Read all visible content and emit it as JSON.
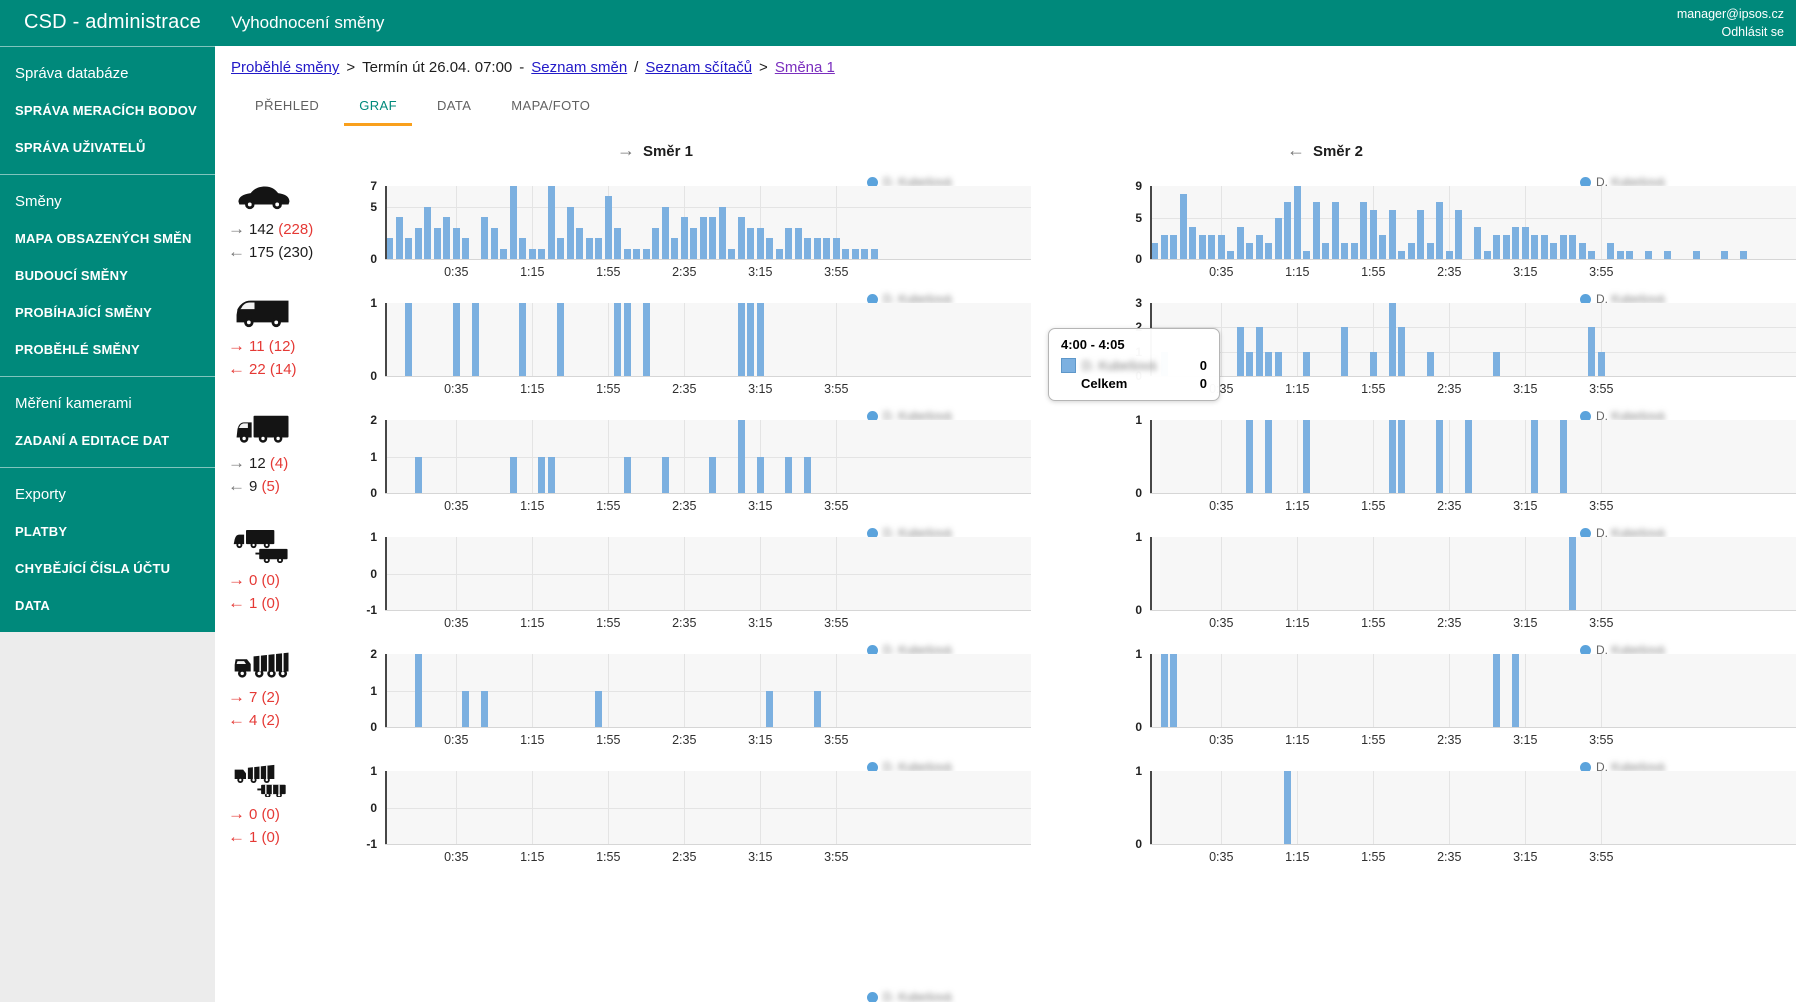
{
  "colors": {
    "teal": "#00897B",
    "tab_orange": "#F9A01C",
    "red": "#E53935",
    "bar_blue": "#7CB0E0",
    "link_blue": "#2219C8",
    "link_visited": "#7B2FBE"
  },
  "app": {
    "brand": "CSD - administrace",
    "page_title": "Vyhodnocení směny",
    "user_email": "manager@ipsos.cz",
    "logout_label": "Odhlásit se"
  },
  "sidebar": {
    "sections": [
      {
        "header": "Správa databáze",
        "items": [
          "SPRÁVA MERACÍCH BODOV",
          "SPRÁVA UŽIVATELŮ"
        ]
      },
      {
        "header": "Směny",
        "items": [
          "MAPA OBSAZENÝCH SMĚN",
          "BUDOUCÍ SMĚNY",
          "PROBÍHAJÍCÍ SMĚNY",
          "PROBĚHLÉ SMĚNY"
        ]
      },
      {
        "header": "Měření kamerami",
        "items": [
          "ZADANÍ A EDITACE DAT"
        ]
      },
      {
        "header": "Exporty",
        "items": [
          "PLATBY",
          "CHYBĚJÍCÍ ČÍSLA ÚČTU",
          "DATA"
        ]
      }
    ]
  },
  "breadcrumb": [
    {
      "label": "Proběhlé směny",
      "type": "link"
    },
    {
      "label": ">",
      "type": "sep"
    },
    {
      "label": "Termín út 26.04. 07:00",
      "type": "text"
    },
    {
      "label": "-",
      "type": "sep"
    },
    {
      "label": "Seznam směn",
      "type": "link"
    },
    {
      "label": "/",
      "type": "sep"
    },
    {
      "label": "Seznam sčítačů",
      "type": "link"
    },
    {
      "label": ">",
      "type": "sep"
    },
    {
      "label": "Směna 1",
      "type": "link-visited"
    }
  ],
  "tabs": [
    {
      "label": "PŘEHLED",
      "active": false
    },
    {
      "label": "GRAF",
      "active": true
    },
    {
      "label": "DATA",
      "active": false
    },
    {
      "label": "MAPA/FOTO",
      "active": false
    }
  ],
  "columns": {
    "dir1_arrow": "→",
    "dir1": "Směr 1",
    "dir2_arrow": "←",
    "dir2": "Směr 2"
  },
  "legend": {
    "series_name": "D. Kubešová",
    "blurred": true
  },
  "tooltip": {
    "title": "4:00 - 4:05",
    "series_name": "D. Kubešová",
    "series_value": "0",
    "total_label": "Celkem",
    "total_value": "0"
  },
  "rows": [
    {
      "vehicle": "car",
      "dir1": {
        "arrow": "→",
        "arrow_red": false,
        "num": "142",
        "num_red": false,
        "paren": "(228)",
        "paren_red": true
      },
      "dir2": {
        "arrow": "←",
        "arrow_red": false,
        "num": "175",
        "num_red": false,
        "paren": "(230)",
        "paren_red": false
      }
    },
    {
      "vehicle": "van",
      "dir1": {
        "arrow": "→",
        "arrow_red": true,
        "num": "11",
        "num_red": true,
        "paren": "(12)",
        "paren_red": true
      },
      "dir2": {
        "arrow": "←",
        "arrow_red": true,
        "num": "22",
        "num_red": true,
        "paren": "(14)",
        "paren_red": true
      }
    },
    {
      "vehicle": "box-truck",
      "dir1": {
        "arrow": "→",
        "arrow_red": false,
        "num": "12",
        "num_red": false,
        "paren": "(4)",
        "paren_red": true
      },
      "dir2": {
        "arrow": "←",
        "arrow_red": false,
        "num": "9",
        "num_red": false,
        "paren": "(5)",
        "paren_red": true
      }
    },
    {
      "vehicle": "truck-trailer",
      "dir1": {
        "arrow": "→",
        "arrow_red": true,
        "num": "0",
        "num_red": true,
        "paren": "(0)",
        "paren_red": true
      },
      "dir2": {
        "arrow": "←",
        "arrow_red": true,
        "num": "1",
        "num_red": true,
        "paren": "(0)",
        "paren_red": true
      }
    },
    {
      "vehicle": "dump-truck",
      "dir1": {
        "arrow": "→",
        "arrow_red": true,
        "num": "7",
        "num_red": true,
        "paren": "(2)",
        "paren_red": true
      },
      "dir2": {
        "arrow": "←",
        "arrow_red": true,
        "num": "4",
        "num_red": true,
        "paren": "(2)",
        "paren_red": true
      }
    },
    {
      "vehicle": "dump-trailer",
      "dir1": {
        "arrow": "→",
        "arrow_red": true,
        "num": "0",
        "num_red": true,
        "paren": "(0)",
        "paren_red": true
      },
      "dir2": {
        "arrow": "←",
        "arrow_red": true,
        "num": "1",
        "num_red": true,
        "paren": "(0)",
        "paren_red": true
      }
    }
  ],
  "x_axis": {
    "bin_minutes": 5,
    "n_bins": 68,
    "tick_bins": [
      7,
      15,
      23,
      31,
      39,
      47
    ],
    "tick_labels": [
      "0:35",
      "1:15",
      "1:55",
      "2:35",
      "3:15",
      "3:55"
    ]
  },
  "chart_data": [
    {
      "id": "car-smer1",
      "type": "bar",
      "direction": "Směr 1",
      "vehicle": "car",
      "ymin": 0,
      "ymax": 7,
      "yticks": [
        7,
        5,
        0
      ],
      "values": [
        2,
        4,
        2,
        3,
        5,
        3,
        4,
        3,
        2,
        0,
        4,
        3,
        1,
        7,
        2,
        1,
        1,
        7,
        2,
        5,
        3,
        2,
        2,
        6,
        3,
        1,
        1,
        1,
        3,
        5,
        2,
        4,
        3,
        4,
        4,
        5,
        1,
        4,
        3,
        3,
        2,
        1,
        3,
        3,
        2,
        2,
        2,
        2,
        1,
        1,
        1,
        1,
        0,
        0,
        0,
        0,
        0,
        0,
        0,
        0,
        0,
        0,
        0,
        0,
        0,
        0,
        0,
        0
      ]
    },
    {
      "id": "car-smer2",
      "type": "bar",
      "direction": "Směr 2",
      "vehicle": "car",
      "ymin": 0,
      "ymax": 9,
      "yticks": [
        9,
        5,
        0
      ],
      "values": [
        2,
        3,
        3,
        8,
        4,
        3,
        3,
        3,
        1,
        4,
        2,
        3,
        2,
        5,
        7,
        9,
        1,
        7,
        2,
        7,
        2,
        2,
        7,
        6,
        3,
        6,
        1,
        2,
        6,
        2,
        7,
        1,
        6,
        0,
        4,
        1,
        3,
        3,
        4,
        4,
        3,
        3,
        2,
        3,
        3,
        2,
        1,
        0,
        2,
        1,
        1,
        0,
        1,
        0,
        1,
        0,
        0,
        1,
        0,
        0,
        1,
        0,
        1,
        0,
        0,
        0,
        0,
        0
      ]
    },
    {
      "id": "van-smer1",
      "type": "bar",
      "direction": "Směr 1",
      "vehicle": "van",
      "ymin": 0,
      "ymax": 1,
      "yticks": [
        1,
        0
      ],
      "values": [
        0,
        0,
        1,
        0,
        0,
        0,
        0,
        1,
        0,
        1,
        0,
        0,
        0,
        0,
        1,
        0,
        0,
        0,
        1,
        0,
        0,
        0,
        0,
        0,
        1,
        1,
        0,
        1,
        0,
        0,
        0,
        0,
        0,
        0,
        0,
        0,
        0,
        1,
        1,
        1,
        0,
        0,
        0,
        0,
        0,
        0,
        0,
        0,
        0,
        0,
        0,
        0,
        0,
        0,
        0,
        0,
        0,
        0,
        0,
        0,
        0,
        0,
        0,
        0,
        0,
        0,
        0,
        0
      ]
    },
    {
      "id": "van-smer2",
      "type": "bar",
      "direction": "Směr 2",
      "vehicle": "van",
      "ymin": 0,
      "ymax": 3,
      "yticks": [
        3,
        2,
        1,
        0
      ],
      "values": [
        0,
        1,
        0,
        0,
        0,
        0,
        0,
        0,
        0,
        2,
        1,
        2,
        1,
        1,
        0,
        0,
        1,
        0,
        0,
        0,
        2,
        0,
        0,
        1,
        0,
        3,
        2,
        0,
        0,
        1,
        0,
        0,
        0,
        0,
        0,
        0,
        1,
        0,
        0,
        0,
        0,
        0,
        0,
        0,
        0,
        0,
        2,
        1,
        0,
        0,
        0,
        0,
        0,
        0,
        0,
        0,
        0,
        0,
        0,
        0,
        0,
        0,
        0,
        0,
        0,
        0,
        0,
        0
      ]
    },
    {
      "id": "box-truck-smer1",
      "type": "bar",
      "direction": "Směr 1",
      "vehicle": "box-truck",
      "ymin": 0,
      "ymax": 2,
      "yticks": [
        2,
        1,
        0
      ],
      "values": [
        0,
        0,
        0,
        1,
        0,
        0,
        0,
        0,
        0,
        0,
        0,
        0,
        0,
        1,
        0,
        0,
        1,
        1,
        0,
        0,
        0,
        0,
        0,
        0,
        0,
        1,
        0,
        0,
        0,
        1,
        0,
        0,
        0,
        0,
        1,
        0,
        0,
        2,
        0,
        1,
        0,
        0,
        1,
        0,
        1,
        0,
        0,
        0,
        0,
        0,
        0,
        0,
        0,
        0,
        0,
        0,
        0,
        0,
        0,
        0,
        0,
        0,
        0,
        0,
        0,
        0,
        0,
        0
      ]
    },
    {
      "id": "box-truck-smer2",
      "type": "bar",
      "direction": "Směr 2",
      "vehicle": "box-truck",
      "ymin": 0,
      "ymax": 1,
      "yticks": [
        1,
        0
      ],
      "values": [
        0,
        0,
        0,
        0,
        0,
        0,
        0,
        0,
        0,
        0,
        1,
        0,
        1,
        0,
        0,
        0,
        1,
        0,
        0,
        0,
        0,
        0,
        0,
        0,
        0,
        1,
        1,
        0,
        0,
        0,
        1,
        0,
        0,
        1,
        0,
        0,
        0,
        0,
        0,
        0,
        1,
        0,
        0,
        1,
        0,
        0,
        0,
        0,
        0,
        0,
        0,
        0,
        0,
        0,
        0,
        0,
        0,
        0,
        0,
        0,
        0,
        0,
        0,
        0,
        0,
        0,
        0,
        0
      ]
    },
    {
      "id": "truck-trailer-smer1",
      "type": "bar",
      "direction": "Směr 1",
      "vehicle": "truck-trailer",
      "ymin": -1,
      "ymax": 1,
      "yticks": [
        1,
        0,
        -1
      ],
      "values": [
        0,
        0,
        0,
        0,
        0,
        0,
        0,
        0,
        0,
        0,
        0,
        0,
        0,
        0,
        0,
        0,
        0,
        0,
        0,
        0,
        0,
        0,
        0,
        0,
        0,
        0,
        0,
        0,
        0,
        0,
        0,
        0,
        0,
        0,
        0,
        0,
        0,
        0,
        0,
        0,
        0,
        0,
        0,
        0,
        0,
        0,
        0,
        0,
        0,
        0,
        0,
        0,
        0,
        0,
        0,
        0,
        0,
        0,
        0,
        0,
        0,
        0,
        0,
        0,
        0,
        0,
        0,
        0
      ]
    },
    {
      "id": "truck-trailer-smer2",
      "type": "bar",
      "direction": "Směr 2",
      "vehicle": "truck-trailer",
      "ymin": 0,
      "ymax": 1,
      "yticks": [
        1,
        0
      ],
      "values": [
        0,
        0,
        0,
        0,
        0,
        0,
        0,
        0,
        0,
        0,
        0,
        0,
        0,
        0,
        0,
        0,
        0,
        0,
        0,
        0,
        0,
        0,
        0,
        0,
        0,
        0,
        0,
        0,
        0,
        0,
        0,
        0,
        0,
        0,
        0,
        0,
        0,
        0,
        0,
        0,
        0,
        0,
        0,
        0,
        1,
        0,
        0,
        0,
        0,
        0,
        0,
        0,
        0,
        0,
        0,
        0,
        0,
        0,
        0,
        0,
        0,
        0,
        0,
        0,
        0,
        0,
        0,
        0
      ]
    },
    {
      "id": "dump-truck-smer1",
      "type": "bar",
      "direction": "Směr 1",
      "vehicle": "dump-truck",
      "ymin": 0,
      "ymax": 2,
      "yticks": [
        2,
        1,
        0
      ],
      "values": [
        0,
        0,
        0,
        2,
        0,
        0,
        0,
        0,
        1,
        0,
        1,
        0,
        0,
        0,
        0,
        0,
        0,
        0,
        0,
        0,
        0,
        0,
        1,
        0,
        0,
        0,
        0,
        0,
        0,
        0,
        0,
        0,
        0,
        0,
        0,
        0,
        0,
        0,
        0,
        0,
        1,
        0,
        0,
        0,
        0,
        1,
        0,
        0,
        0,
        0,
        0,
        0,
        0,
        0,
        0,
        0,
        0,
        0,
        0,
        0,
        0,
        0,
        0,
        0,
        0,
        0,
        0,
        0
      ]
    },
    {
      "id": "dump-truck-smer2",
      "type": "bar",
      "direction": "Směr 2",
      "vehicle": "dump-truck",
      "ymin": 0,
      "ymax": 1,
      "yticks": [
        1,
        0
      ],
      "values": [
        0,
        1,
        1,
        0,
        0,
        0,
        0,
        0,
        0,
        0,
        0,
        0,
        0,
        0,
        0,
        0,
        0,
        0,
        0,
        0,
        0,
        0,
        0,
        0,
        0,
        0,
        0,
        0,
        0,
        0,
        0,
        0,
        0,
        0,
        0,
        0,
        1,
        0,
        1,
        0,
        0,
        0,
        0,
        0,
        0,
        0,
        0,
        0,
        0,
        0,
        0,
        0,
        0,
        0,
        0,
        0,
        0,
        0,
        0,
        0,
        0,
        0,
        0,
        0,
        0,
        0,
        0,
        0
      ]
    },
    {
      "id": "dump-trailer-smer1",
      "type": "bar",
      "direction": "Směr 1",
      "vehicle": "dump-trailer",
      "ymin": -1,
      "ymax": 1,
      "yticks": [
        1,
        0,
        -1
      ],
      "values": [
        0,
        0,
        0,
        0,
        0,
        0,
        0,
        0,
        0,
        0,
        0,
        0,
        0,
        0,
        0,
        0,
        0,
        0,
        0,
        0,
        0,
        0,
        0,
        0,
        0,
        0,
        0,
        0,
        0,
        0,
        0,
        0,
        0,
        0,
        0,
        0,
        0,
        0,
        0,
        0,
        0,
        0,
        0,
        0,
        0,
        0,
        0,
        0,
        0,
        0,
        0,
        0,
        0,
        0,
        0,
        0,
        0,
        0,
        0,
        0,
        0,
        0,
        0,
        0,
        0,
        0,
        0,
        0
      ]
    },
    {
      "id": "dump-trailer-smer2",
      "type": "bar",
      "direction": "Směr 2",
      "vehicle": "dump-trailer",
      "ymin": 0,
      "ymax": 1,
      "yticks": [
        1,
        0
      ],
      "values": [
        0,
        0,
        0,
        0,
        0,
        0,
        0,
        0,
        0,
        0,
        0,
        0,
        0,
        0,
        1,
        0,
        0,
        0,
        0,
        0,
        0,
        0,
        0,
        0,
        0,
        0,
        0,
        0,
        0,
        0,
        0,
        0,
        0,
        0,
        0,
        0,
        0,
        0,
        0,
        0,
        0,
        0,
        0,
        0,
        0,
        0,
        0,
        0,
        0,
        0,
        0,
        0,
        0,
        0,
        0,
        0,
        0,
        0,
        0,
        0,
        0,
        0,
        0,
        0,
        0,
        0,
        0,
        0
      ]
    }
  ]
}
